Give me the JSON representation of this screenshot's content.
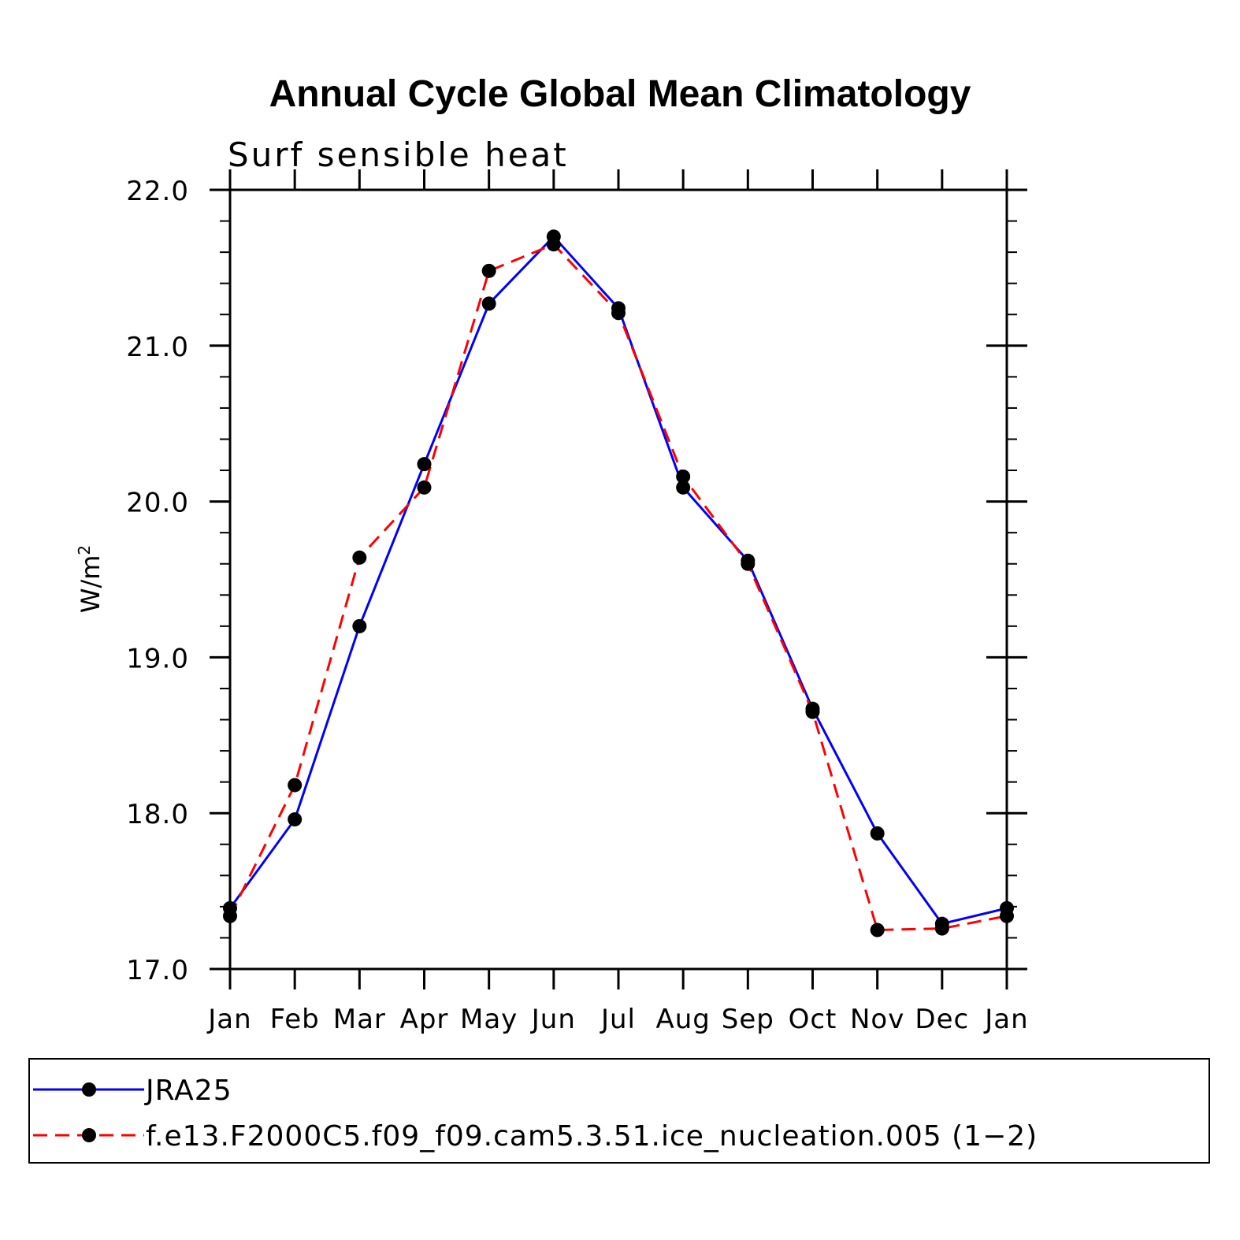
{
  "chart_data": {
    "type": "line",
    "title": "Annual Cycle Global Mean Climatology",
    "subtitle": "Surf sensible heat",
    "ylabel": "W/m",
    "ylabel_superscript": "2",
    "xlabel": "",
    "ylim": [
      17.0,
      22.0
    ],
    "yticks": [
      "22.0",
      "21.0",
      "20.0",
      "19.0",
      "18.0",
      "17.0"
    ],
    "categories": [
      "Jan",
      "Feb",
      "Mar",
      "Apr",
      "May",
      "Jun",
      "Jul",
      "Aug",
      "Sep",
      "Oct",
      "Nov",
      "Dec",
      "Jan"
    ],
    "series": [
      {
        "name": "JRA25",
        "color": "#0000ff",
        "dash": "solid",
        "values": [
          17.39,
          17.96,
          19.2,
          20.24,
          21.27,
          21.7,
          21.24,
          20.09,
          19.62,
          18.67,
          17.87,
          17.29,
          17.39
        ]
      },
      {
        "name": "f.e13.F2000C5.f09_f09.cam5.3.51.ice_nucleation.005 (1−2)",
        "color": "#ff0000",
        "dash": "dashed",
        "values": [
          17.34,
          18.18,
          19.64,
          20.09,
          21.48,
          21.65,
          21.21,
          20.16,
          19.6,
          18.65,
          17.25,
          17.26,
          17.34
        ]
      }
    ],
    "legend_position": "bottom"
  }
}
